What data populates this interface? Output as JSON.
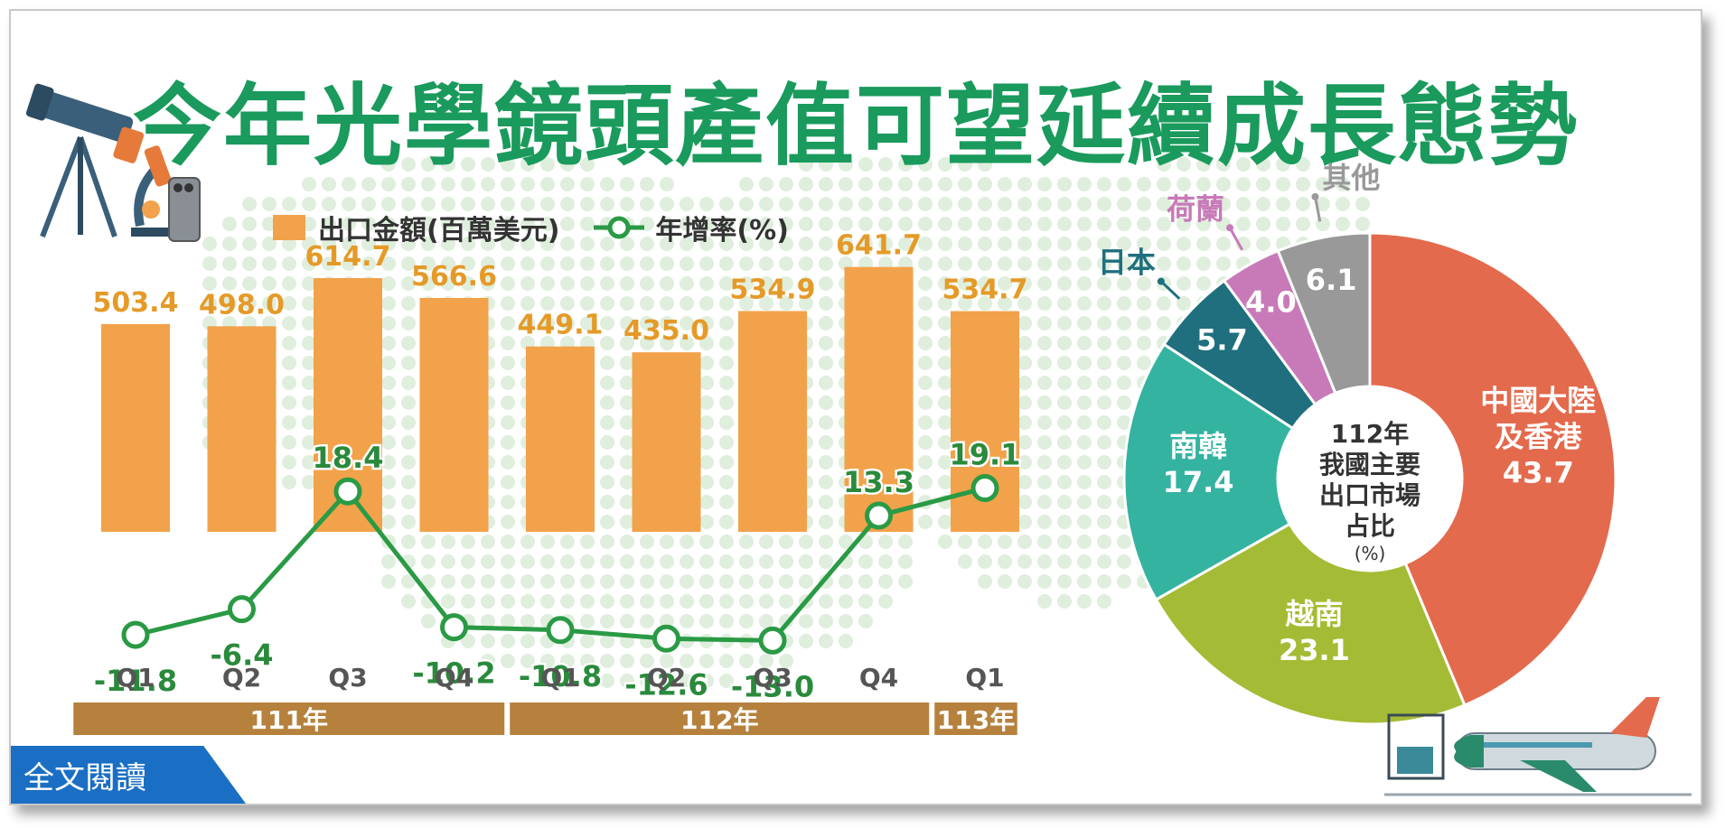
{
  "title": "今年光學鏡頭產值可望延續成長態勢",
  "read_button_label": "全文閱讀",
  "colors": {
    "bar": "#f2a24a",
    "line": "#2a9a45",
    "bar_label": "#e59a28",
    "rate_label": "#2a8a3c",
    "year_band": "#b5813d",
    "title": "#1a9a5c"
  },
  "chart_data": [
    {
      "type": "bar",
      "categories": [
        "Q1",
        "Q2",
        "Q3",
        "Q4",
        "Q1",
        "Q2",
        "Q3",
        "Q4",
        "Q1"
      ],
      "groups": [
        {
          "label": "111年",
          "span": 4
        },
        {
          "label": "112年",
          "span": 4
        },
        {
          "label": "113年",
          "span": 1
        }
      ],
      "series": [
        {
          "name": "出口金額(百萬美元)",
          "type": "bar",
          "values": [
            503.4,
            498.0,
            614.7,
            566.6,
            449.1,
            435.0,
            534.9,
            641.7,
            534.7
          ],
          "labels": [
            "503.4",
            "498.0",
            "614.7",
            "566.6",
            "449.1",
            "435.0",
            "534.9",
            "641.7",
            "534.7"
          ]
        },
        {
          "name": "年增率(%)",
          "type": "line",
          "values": [
            -11.8,
            -6.4,
            18.4,
            -10.2,
            -10.8,
            -12.6,
            -13.0,
            13.3,
            19.1
          ],
          "labels": [
            "-11.8",
            "-6.4",
            "18.4",
            "-10.2",
            "-10.8",
            "-12.6",
            "-13.0",
            "13.3",
            "19.1"
          ]
        }
      ]
    },
    {
      "type": "pie",
      "center_label": [
        "112年",
        "我國主要",
        "出口市場",
        "占比"
      ],
      "center_unit": "(%)",
      "slices": [
        {
          "name": "中國大陸及香港",
          "name_lines": [
            "中國大陸",
            "及香港"
          ],
          "value": 43.7,
          "label": "43.7",
          "color": "#e46a4d"
        },
        {
          "name": "越南",
          "name_lines": [
            "越南"
          ],
          "value": 23.1,
          "label": "23.1",
          "color": "#a4bb35"
        },
        {
          "name": "南韓",
          "name_lines": [
            "南韓"
          ],
          "value": 17.4,
          "label": "17.4",
          "color": "#34b3a1"
        },
        {
          "name": "日本",
          "name_lines": [
            "日本"
          ],
          "value": 5.7,
          "label": "5.7",
          "color": "#1f6f7e"
        },
        {
          "name": "荷蘭",
          "name_lines": [
            "荷蘭"
          ],
          "value": 4.0,
          "label": "4.0",
          "color": "#c87ab8"
        },
        {
          "name": "其他",
          "name_lines": [
            "其他"
          ],
          "value": 6.1,
          "label": "6.1",
          "color": "#999999"
        }
      ]
    }
  ]
}
